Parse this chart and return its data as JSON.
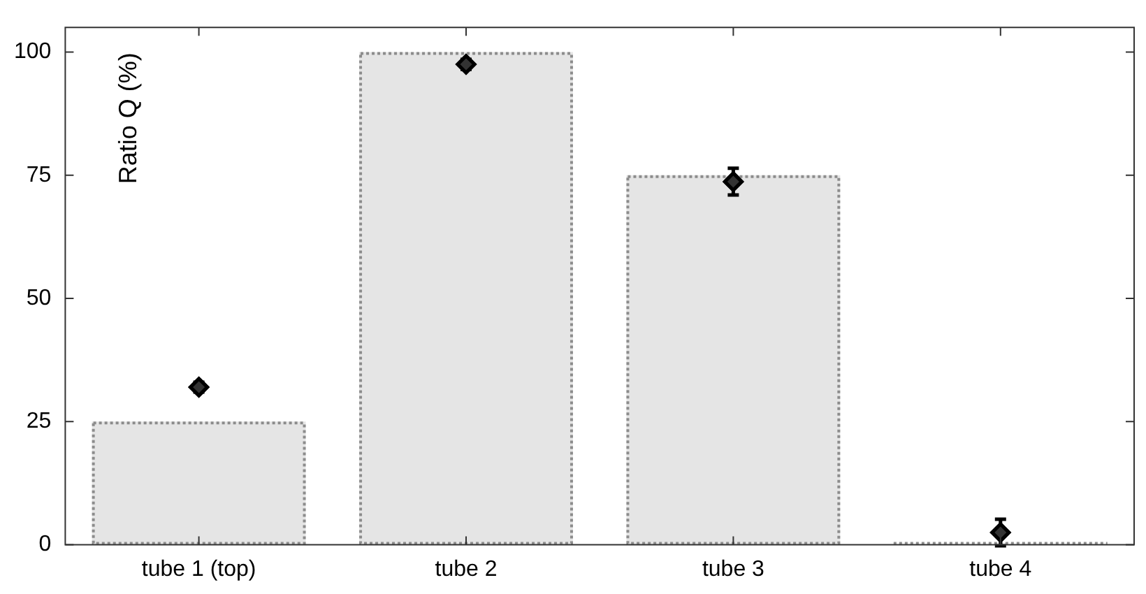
{
  "chart_data": {
    "type": "bar",
    "ylabel": "Ratio Q (%)",
    "categories": [
      "tube 1 (top)",
      "tube 2",
      "tube 3",
      "tube 4"
    ],
    "series": [
      {
        "color": "#e5e5e5",
        "values": [
          25,
          100,
          75,
          0
        ]
      },
      {
        "type": "scatter",
        "color": "#333333",
        "x": [
          "tube 1 (top)",
          "tube 2",
          "tube 3",
          "tube 4"
        ],
        "values": [
          32,
          97.5,
          73.7,
          2.5
        ],
        "errors": [
          1,
          1,
          2.7,
          2.7
        ]
      }
    ],
    "ylim": [
      0,
      105
    ],
    "yticks": [
      0,
      25,
      50,
      75,
      100
    ],
    "grid": false,
    "legend": false,
    "marker": "diamond"
  }
}
